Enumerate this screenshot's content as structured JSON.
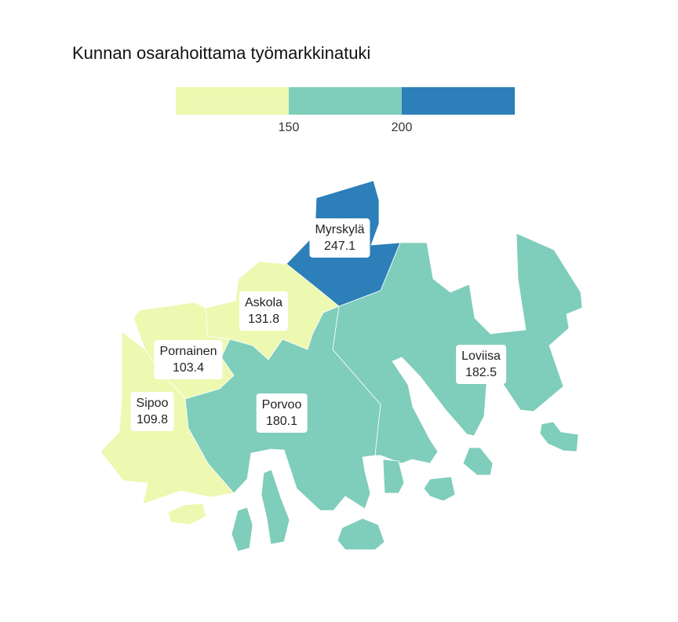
{
  "title": "Kunnan osarahoittama työmarkkinatuki",
  "legend": {
    "bins": [
      {
        "color": "#edf8b1"
      },
      {
        "color": "#7fcdbb"
      },
      {
        "color": "#2c7fb8"
      }
    ],
    "ticks": [
      "150",
      "200"
    ]
  },
  "municipalities": [
    {
      "name": "Myrskylä",
      "value": "247.1",
      "color": "#2c7fb8"
    },
    {
      "name": "Askola",
      "value": "131.8",
      "color": "#edf8b1"
    },
    {
      "name": "Pornainen",
      "value": "103.4",
      "color": "#edf8b1"
    },
    {
      "name": "Sipoo",
      "value": "109.8",
      "color": "#edf8b1"
    },
    {
      "name": "Porvoo",
      "value": "180.1",
      "color": "#7fcdbb"
    },
    {
      "name": "Loviisa",
      "value": "182.5",
      "color": "#7fcdbb"
    }
  ]
}
